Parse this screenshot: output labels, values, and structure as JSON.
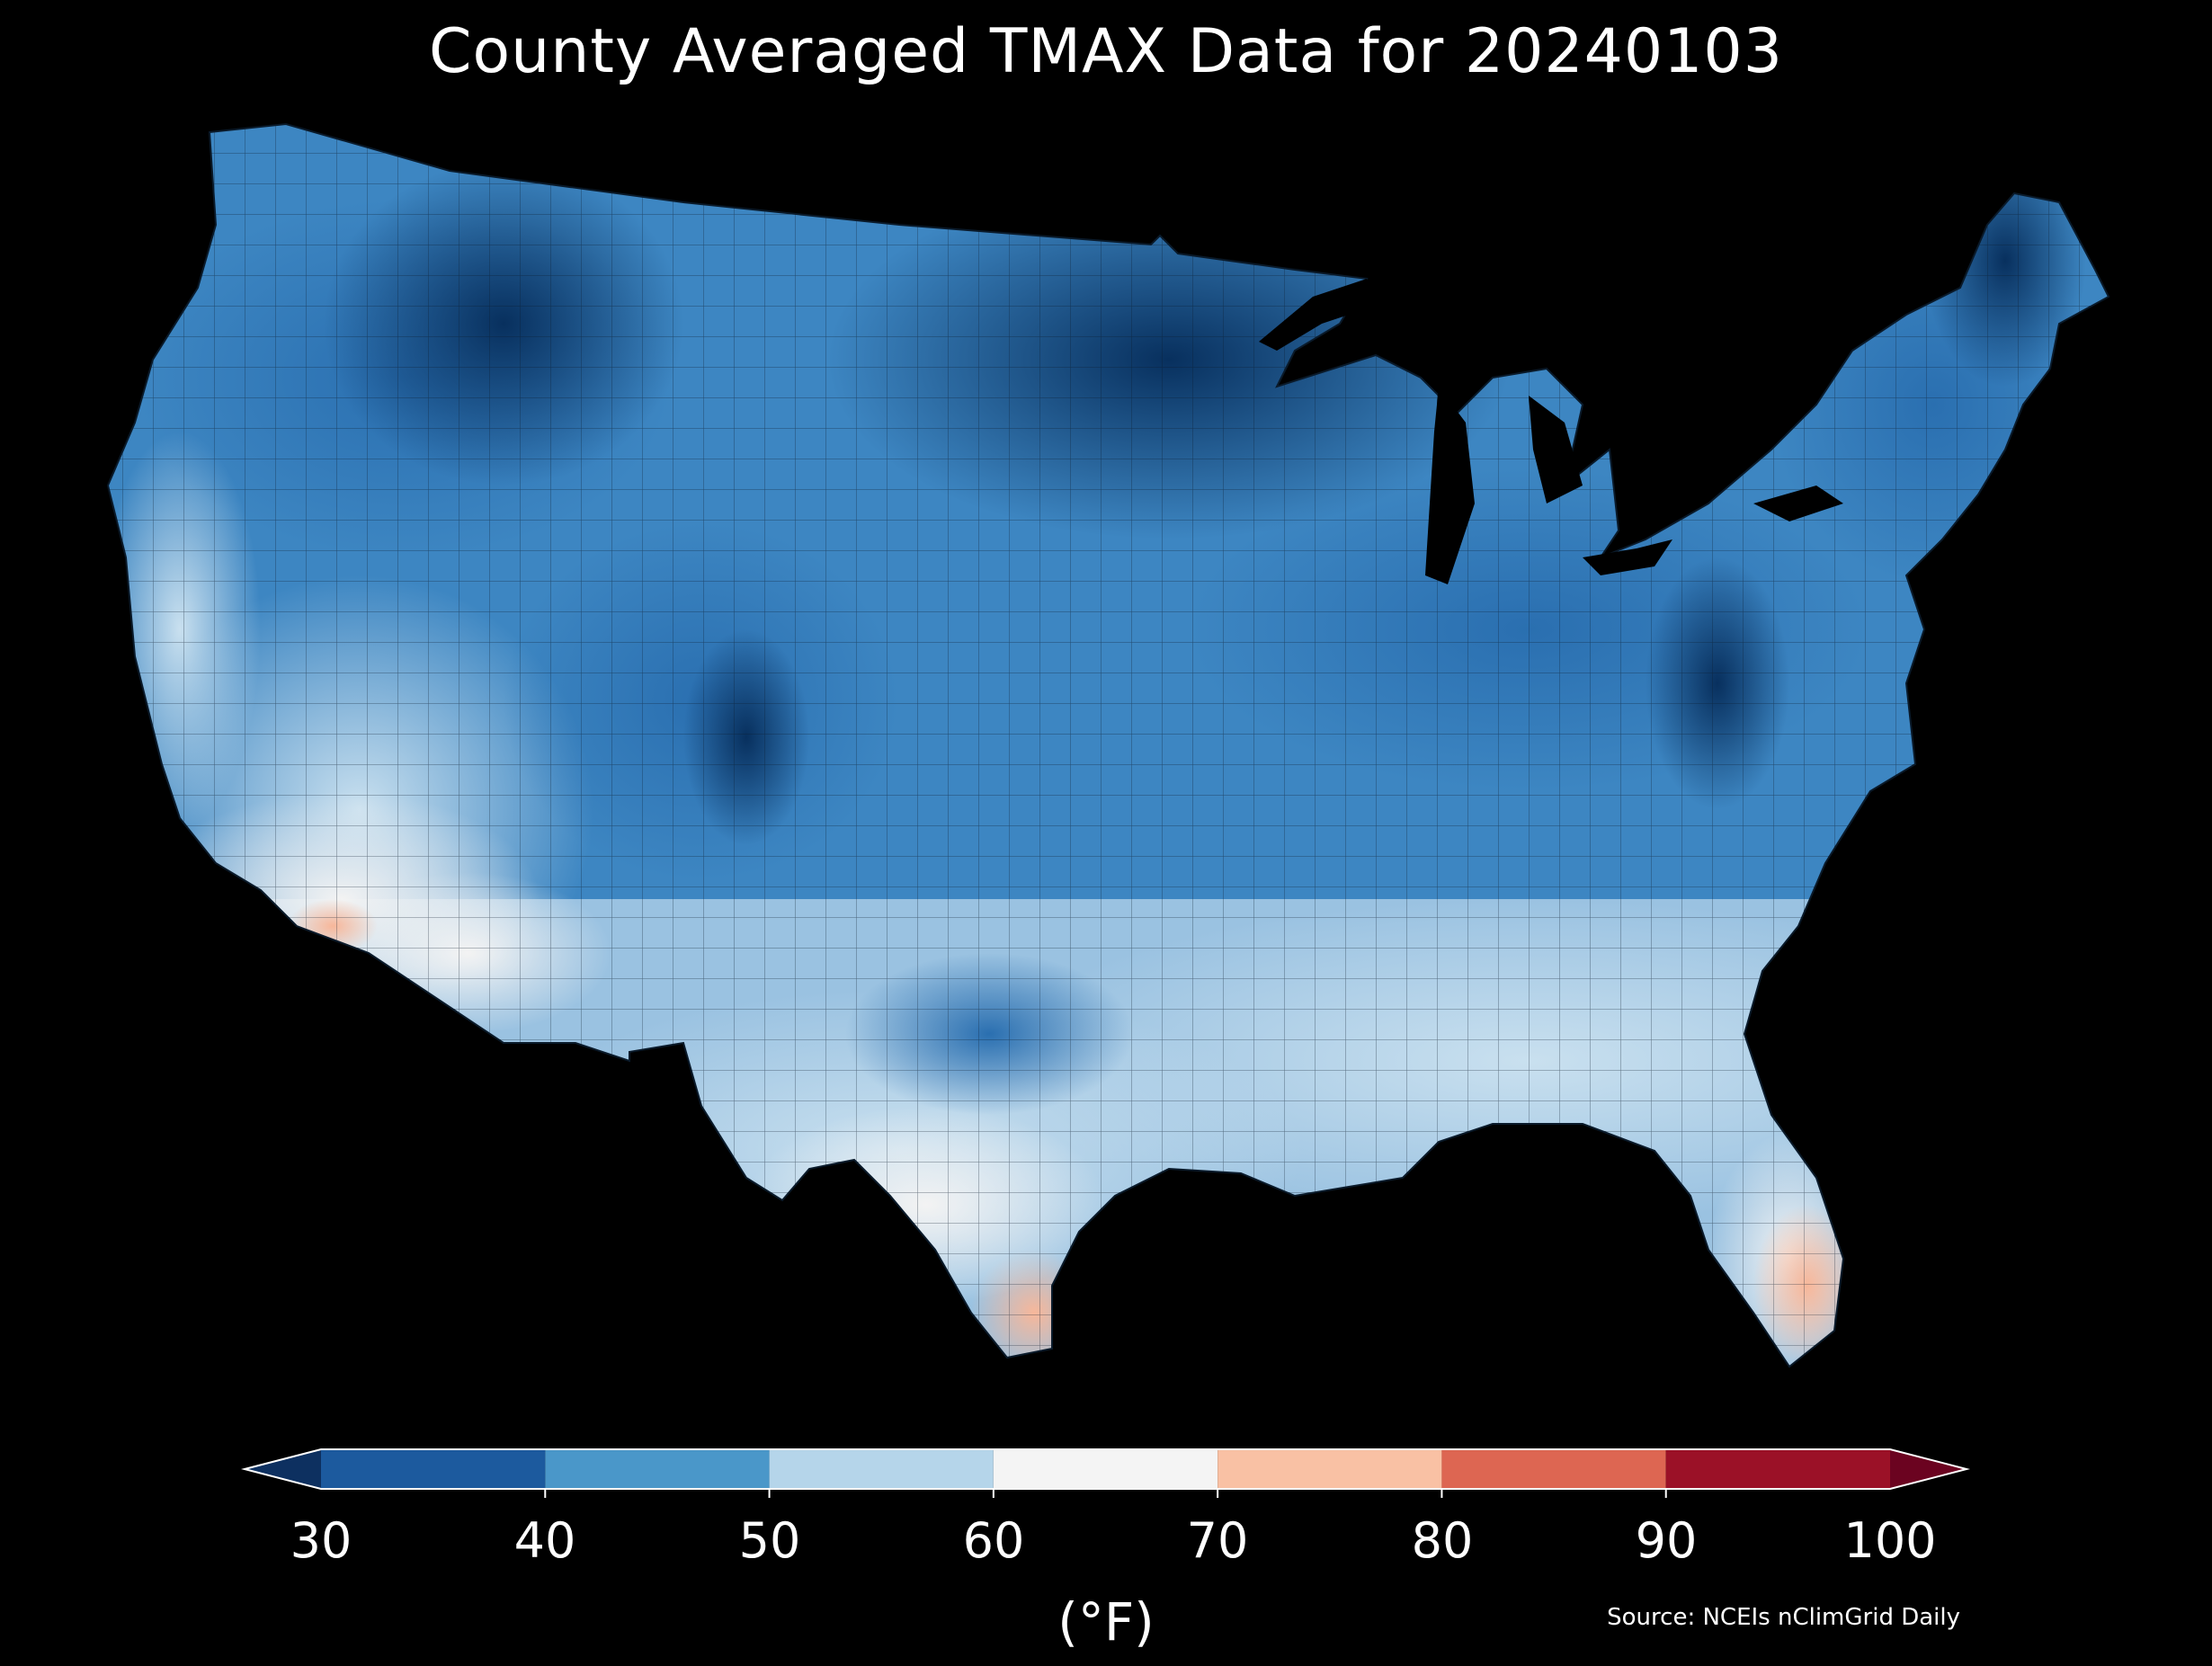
{
  "title": "County Averaged TMAX Data for 20240103",
  "source": "Source: NCEIs nClimGrid Daily",
  "colorbar": {
    "unit_label": "(°F)",
    "ticks": [
      "30",
      "40",
      "50",
      "60",
      "70",
      "80",
      "90",
      "100"
    ],
    "bins": [
      {
        "range": [
          30,
          40
        ],
        "color": "#1c5a9e"
      },
      {
        "range": [
          40,
          50
        ],
        "color": "#4a97c9"
      },
      {
        "range": [
          50,
          60
        ],
        "color": "#b5d5ea"
      },
      {
        "range": [
          60,
          70
        ],
        "color": "#f4f4f4"
      },
      {
        "range": [
          70,
          80
        ],
        "color": "#f9c1a4"
      },
      {
        "range": [
          80,
          90
        ],
        "color": "#dd6652"
      },
      {
        "range": [
          90,
          100
        ],
        "color": "#9b1127"
      }
    ],
    "under_color": "#0d3060",
    "over_color": "#6b0320"
  },
  "colors": {
    "background": "#000000",
    "text": "#ffffff",
    "county_border": "#0a1a2a"
  }
}
